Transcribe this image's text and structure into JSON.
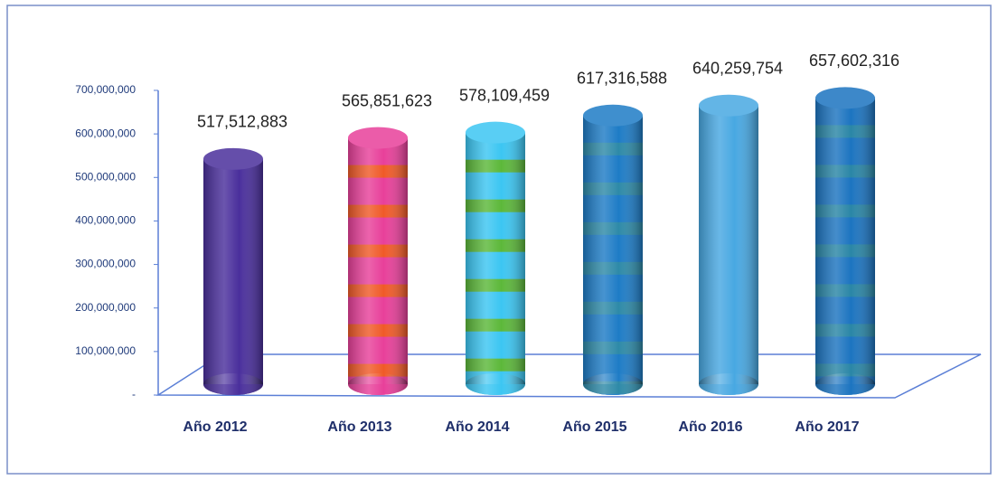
{
  "chart_data": {
    "type": "bar3d",
    "categories": [
      "Año 2012",
      "Año 2013",
      "Año 2014",
      "Año 2015",
      "Año 2016",
      "Año 2017"
    ],
    "values": [
      517512883,
      565851623,
      578109459,
      617316588,
      640259754,
      657602316
    ],
    "value_labels": [
      "517,512,883",
      "565,851,623",
      "578,109,459",
      "617,316,588",
      "640,259,754",
      "657,602,316"
    ],
    "colors": [
      "#4a2f9c",
      "#e8409a",
      "#3cc6f2",
      "#1e7cc6",
      "#48a8e2",
      "#1c74c0"
    ],
    "stripe_colors": [
      null,
      "#f05a28",
      "#5cb83a",
      "#2e8aa8",
      null,
      "#2a86a6"
    ],
    "ylim": [
      0,
      700000000
    ],
    "yticks": [
      {
        "value": 0,
        "label": "-"
      },
      {
        "value": 100000000,
        "label": "100,000,000"
      },
      {
        "value": 200000000,
        "label": "200,000,000"
      },
      {
        "value": 300000000,
        "label": "300,000,000"
      },
      {
        "value": 400000000,
        "label": "400,000,000"
      },
      {
        "value": 500000000,
        "label": "500,000,000"
      },
      {
        "value": 600000000,
        "label": "600,000,000"
      },
      {
        "value": 700000000,
        "label": "700,000,000"
      }
    ]
  }
}
